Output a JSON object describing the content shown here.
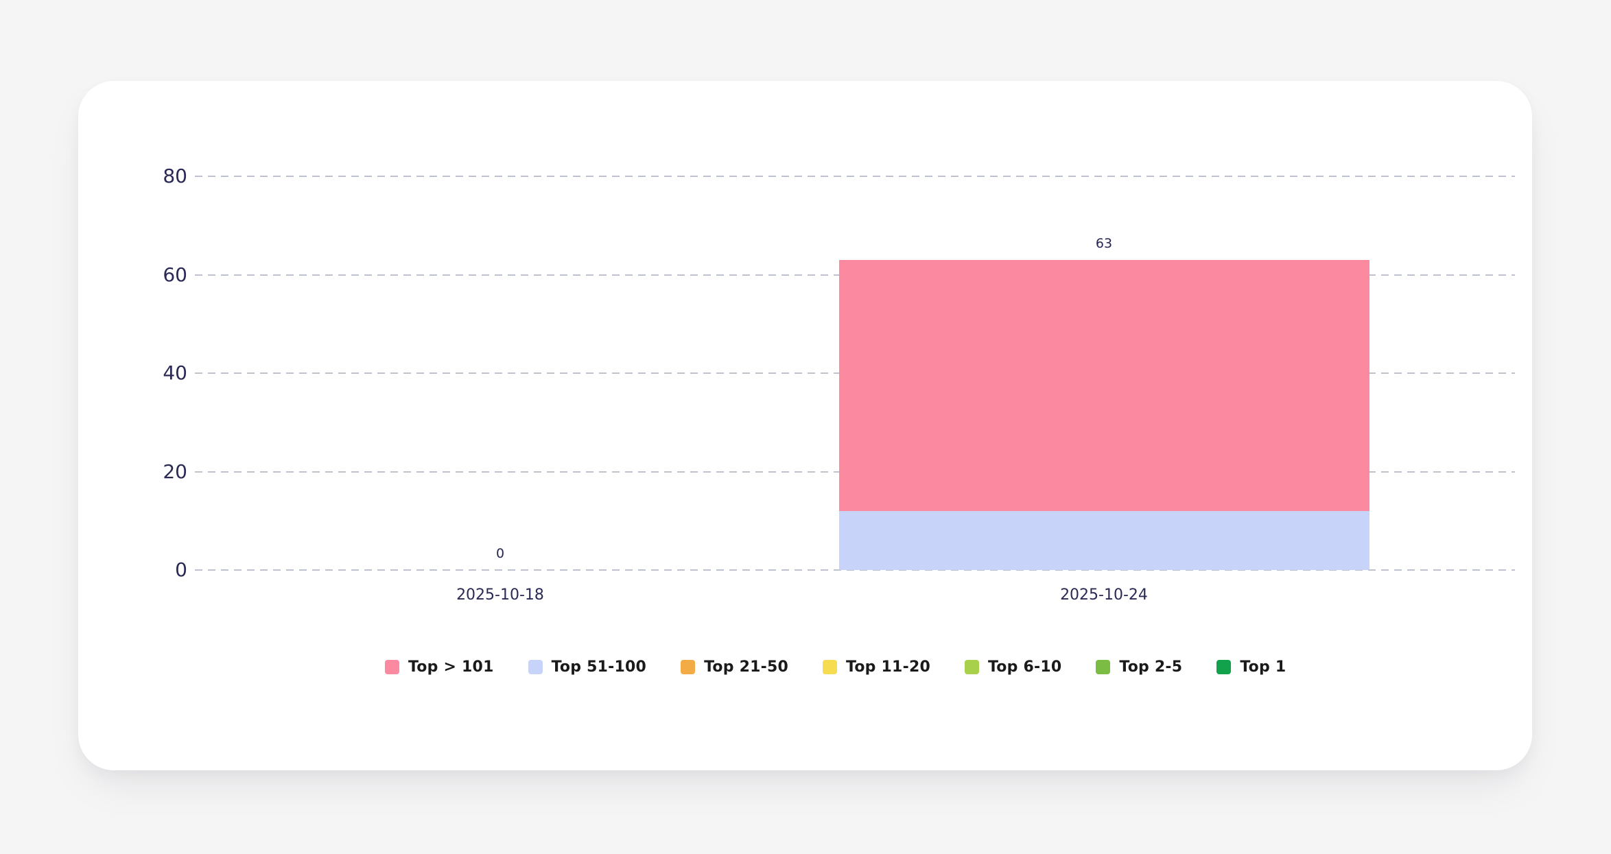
{
  "page": {
    "background": "#F5F5F6"
  },
  "card": {
    "background": "#FFFFFF"
  },
  "chart_data": {
    "type": "bar",
    "stacked": true,
    "title": "",
    "categories": [
      "2025-10-18",
      "2025-10-24"
    ],
    "series": [
      {
        "name": "Top > 101",
        "color": "#FB8AA1",
        "values": [
          0,
          51
        ]
      },
      {
        "name": "Top 51-100",
        "color": "#C7D3F8",
        "values": [
          0,
          12
        ]
      },
      {
        "name": "Top 21-50",
        "color": "#F3AC45",
        "values": [
          0,
          0
        ]
      },
      {
        "name": "Top 11-20",
        "color": "#F6DC50",
        "values": [
          0,
          0
        ]
      },
      {
        "name": "Top 6-10",
        "color": "#A8D04B",
        "values": [
          0,
          0
        ]
      },
      {
        "name": "Top 2-5",
        "color": "#7ABC44",
        "values": [
          0,
          0
        ]
      },
      {
        "name": "Top 1",
        "color": "#12A24B",
        "values": [
          0,
          0
        ]
      }
    ],
    "totals": [
      0,
      63
    ],
    "total_labels": [
      "0",
      "63"
    ],
    "y_ticks": [
      0,
      20,
      40,
      60,
      80
    ],
    "ylim": [
      0,
      80
    ],
    "xlabel": "",
    "ylabel": "",
    "grid": "horizontal-dashed",
    "legend_position": "bottom",
    "stack_order": "reversed: Top 1 at bottom, Top > 101 on top"
  },
  "colors": {
    "axis_text": "#2A2A55",
    "data_label_text": "#262553",
    "legend_text": "#1A1A1A",
    "gridline": "#A9ACBD"
  }
}
